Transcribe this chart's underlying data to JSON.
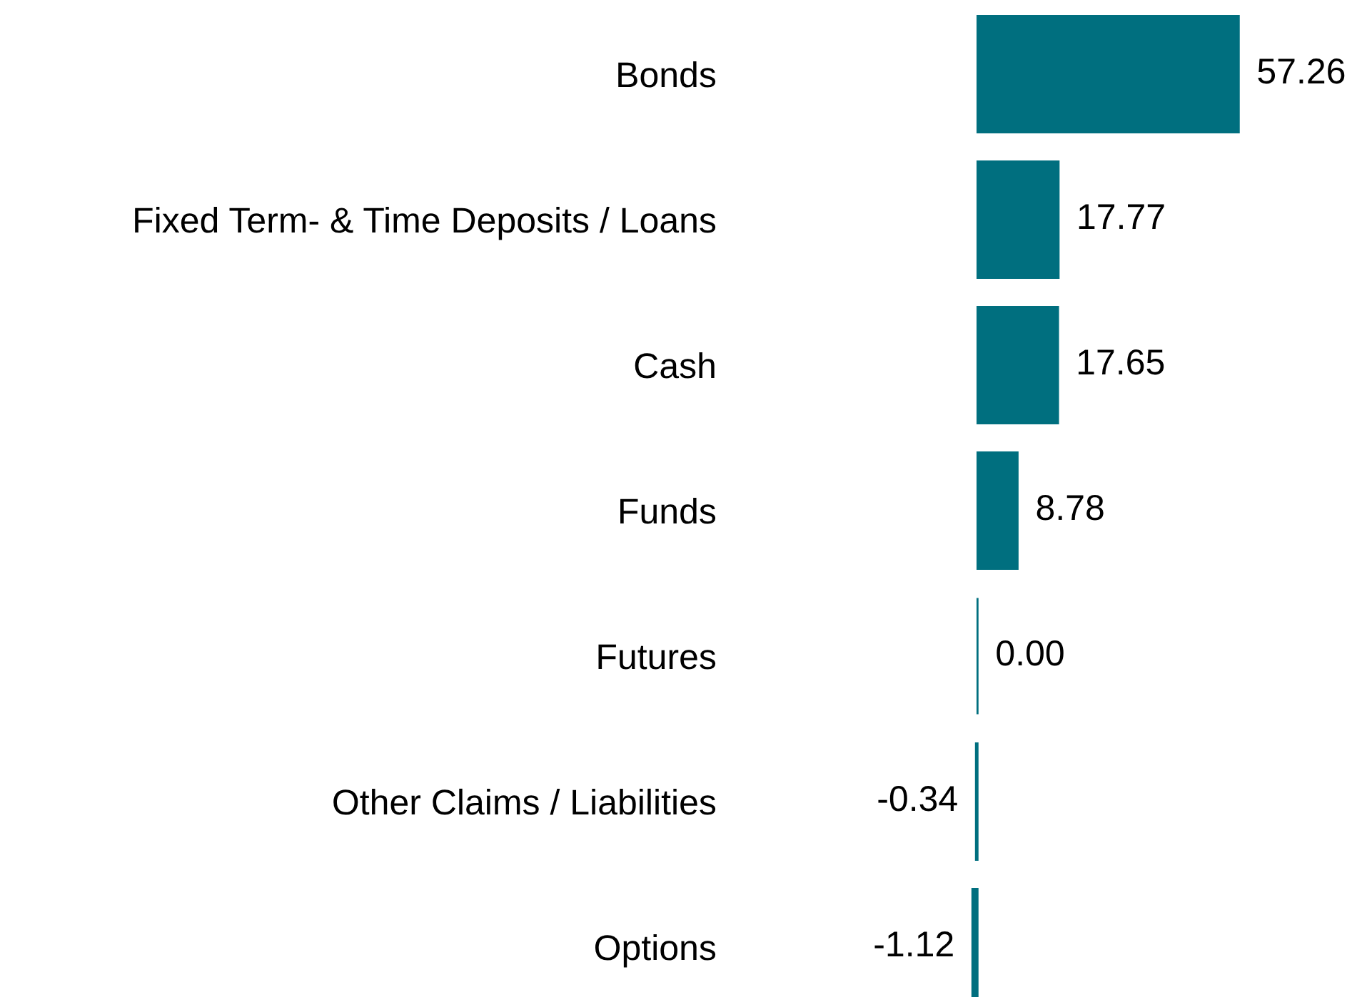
{
  "chart_data": {
    "type": "bar",
    "orientation": "horizontal",
    "categories": [
      "Bonds",
      "Fixed Term- & Time Deposits / Loans",
      "Cash",
      "Funds",
      "Futures",
      "Other Claims / Liabilities",
      "Options"
    ],
    "values": [
      57.26,
      17.77,
      17.65,
      8.78,
      0,
      -0.34,
      -1.12
    ],
    "value_labels": [
      "57.26",
      "17.77",
      "17.65",
      "8.78",
      "0.00",
      "-0.34",
      "-1.12"
    ],
    "color": "#006f7f",
    "tick_labels": "y",
    "grid": false,
    "legend": false
  }
}
